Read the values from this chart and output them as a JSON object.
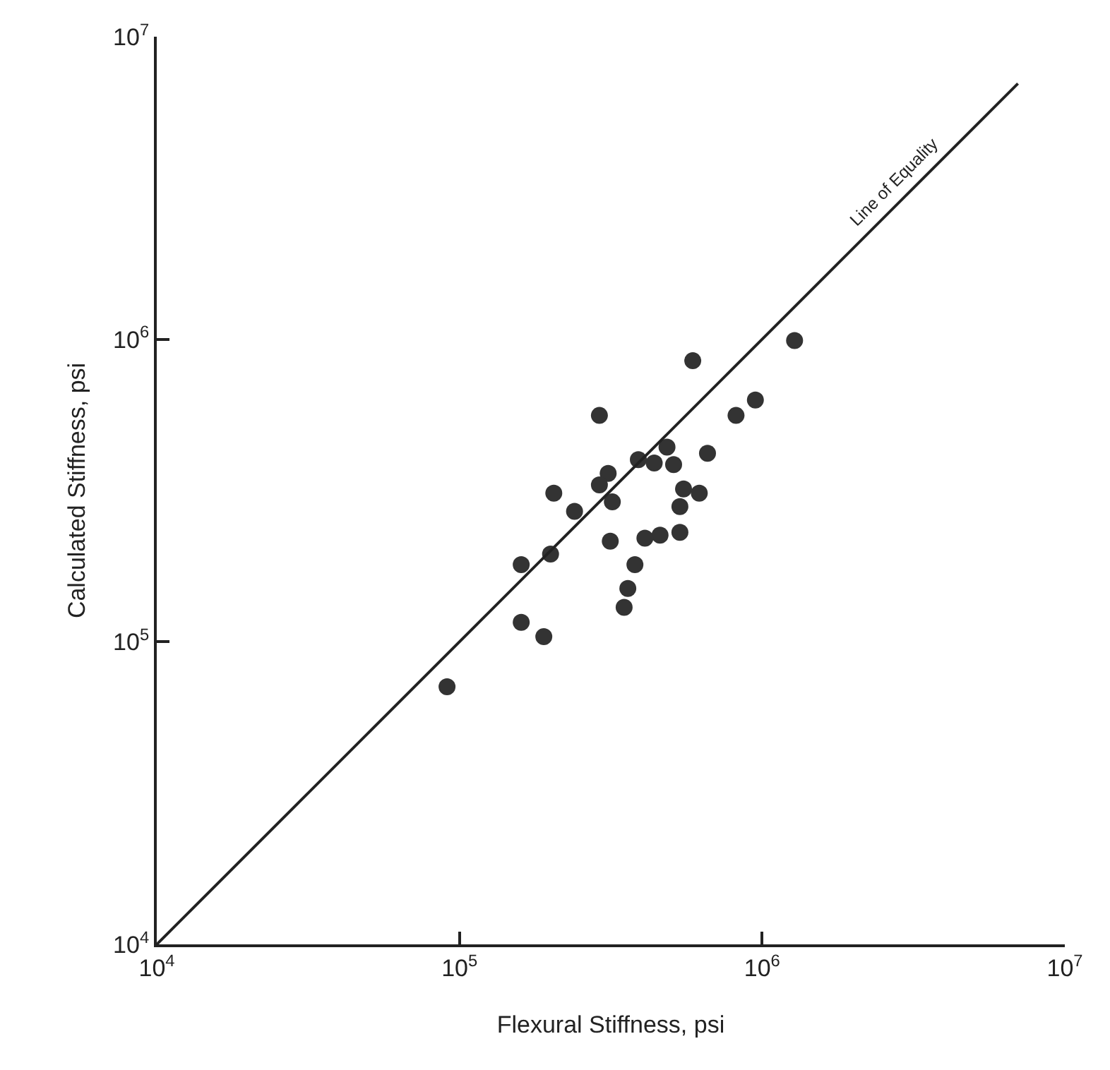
{
  "chart_data": {
    "type": "scatter",
    "xlabel": "Flexural Stiffness, psi",
    "ylabel": "Calculated Stiffness, psi",
    "log": "xy",
    "marker": "circle",
    "xlim": [
      10000,
      10000000
    ],
    "ylim": [
      10000,
      10000000
    ],
    "xticks": [
      {
        "value": 10000,
        "label": "10$^{4}$"
      },
      {
        "value": 100000,
        "label": "10$^{5}$"
      },
      {
        "value": 1000000,
        "label": "10$^{6}$"
      },
      {
        "value": 10000000,
        "label": "10$^{7}$"
      }
    ],
    "yticks": [
      {
        "value": 10000,
        "label": "10$^{4}$"
      },
      {
        "value": 100000,
        "label": "10$^{5}$"
      },
      {
        "value": 1000000,
        "label": "10$^{6}$"
      },
      {
        "value": 10000000,
        "label": "10$^{7}$"
      }
    ],
    "series": [
      {
        "color": "#333333",
        "x": [
          1280000,
          590000,
          950000,
          820000,
          290000,
          485000,
          660000,
          390000,
          440000,
          510000,
          310000,
          290000,
          205000,
          550000,
          620000,
          535000,
          320000,
          240000,
          535000,
          460000,
          410000,
          315000,
          200000,
          160000,
          380000,
          360000,
          350000,
          160000,
          190000,
          91000
        ],
        "values": [
          990000,
          850000,
          630000,
          560000,
          560000,
          440000,
          420000,
          400000,
          390000,
          385000,
          360000,
          330000,
          310000,
          320000,
          310000,
          280000,
          290000,
          270000,
          230000,
          225000,
          220000,
          215000,
          195000,
          180000,
          180000,
          150000,
          130000,
          116000,
          104000,
          71000
        ]
      },
      {
        "type": "line",
        "color": "#222222",
        "line_style": "solid",
        "marker": "none",
        "x": [
          10000,
          7000000
        ],
        "values": [
          10000,
          7000000
        ]
      }
    ],
    "annotations": [
      {
        "text": "Line of Equality",
        "x": 3000000,
        "y": 3000000
      }
    ]
  }
}
